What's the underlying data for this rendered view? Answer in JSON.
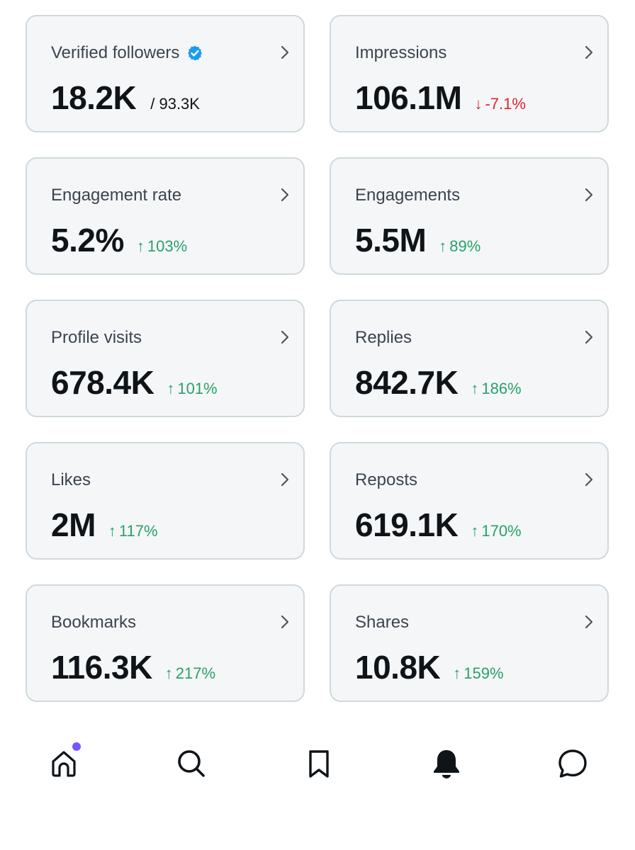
{
  "colors": {
    "up": "#27a16b",
    "down": "#e0242e",
    "verified": "#1d9bf0",
    "home_dot": "#7856ff"
  },
  "cards": [
    {
      "title": "Verified followers",
      "value": "18.2K",
      "total": "/ 93.3K",
      "verified_icon": "verified-badge-icon"
    },
    {
      "title": "Impressions",
      "value": "106.1M",
      "delta": "-7.1%",
      "direction": "down"
    },
    {
      "title": "Engagement rate",
      "value": "5.2%",
      "delta": "103%",
      "direction": "up"
    },
    {
      "title": "Engagements",
      "value": "5.5M",
      "delta": "89%",
      "direction": "up"
    },
    {
      "title": "Profile visits",
      "value": "678.4K",
      "delta": "101%",
      "direction": "up"
    },
    {
      "title": "Replies",
      "value": "842.7K",
      "delta": "186%",
      "direction": "up"
    },
    {
      "title": "Likes",
      "value": "2M",
      "delta": "117%",
      "direction": "up"
    },
    {
      "title": "Reposts",
      "value": "619.1K",
      "delta": "170%",
      "direction": "up"
    },
    {
      "title": "Bookmarks",
      "value": "116.3K",
      "delta": "217%",
      "direction": "up"
    },
    {
      "title": "Shares",
      "value": "10.8K",
      "delta": "159%",
      "direction": "up"
    }
  ],
  "tabbar": {
    "items": [
      {
        "icon": "home-icon",
        "has_dot": true
      },
      {
        "icon": "search-icon"
      },
      {
        "icon": "bookmark-icon"
      },
      {
        "icon": "bell-icon",
        "selected": true
      },
      {
        "icon": "chat-bubble-icon"
      }
    ]
  }
}
